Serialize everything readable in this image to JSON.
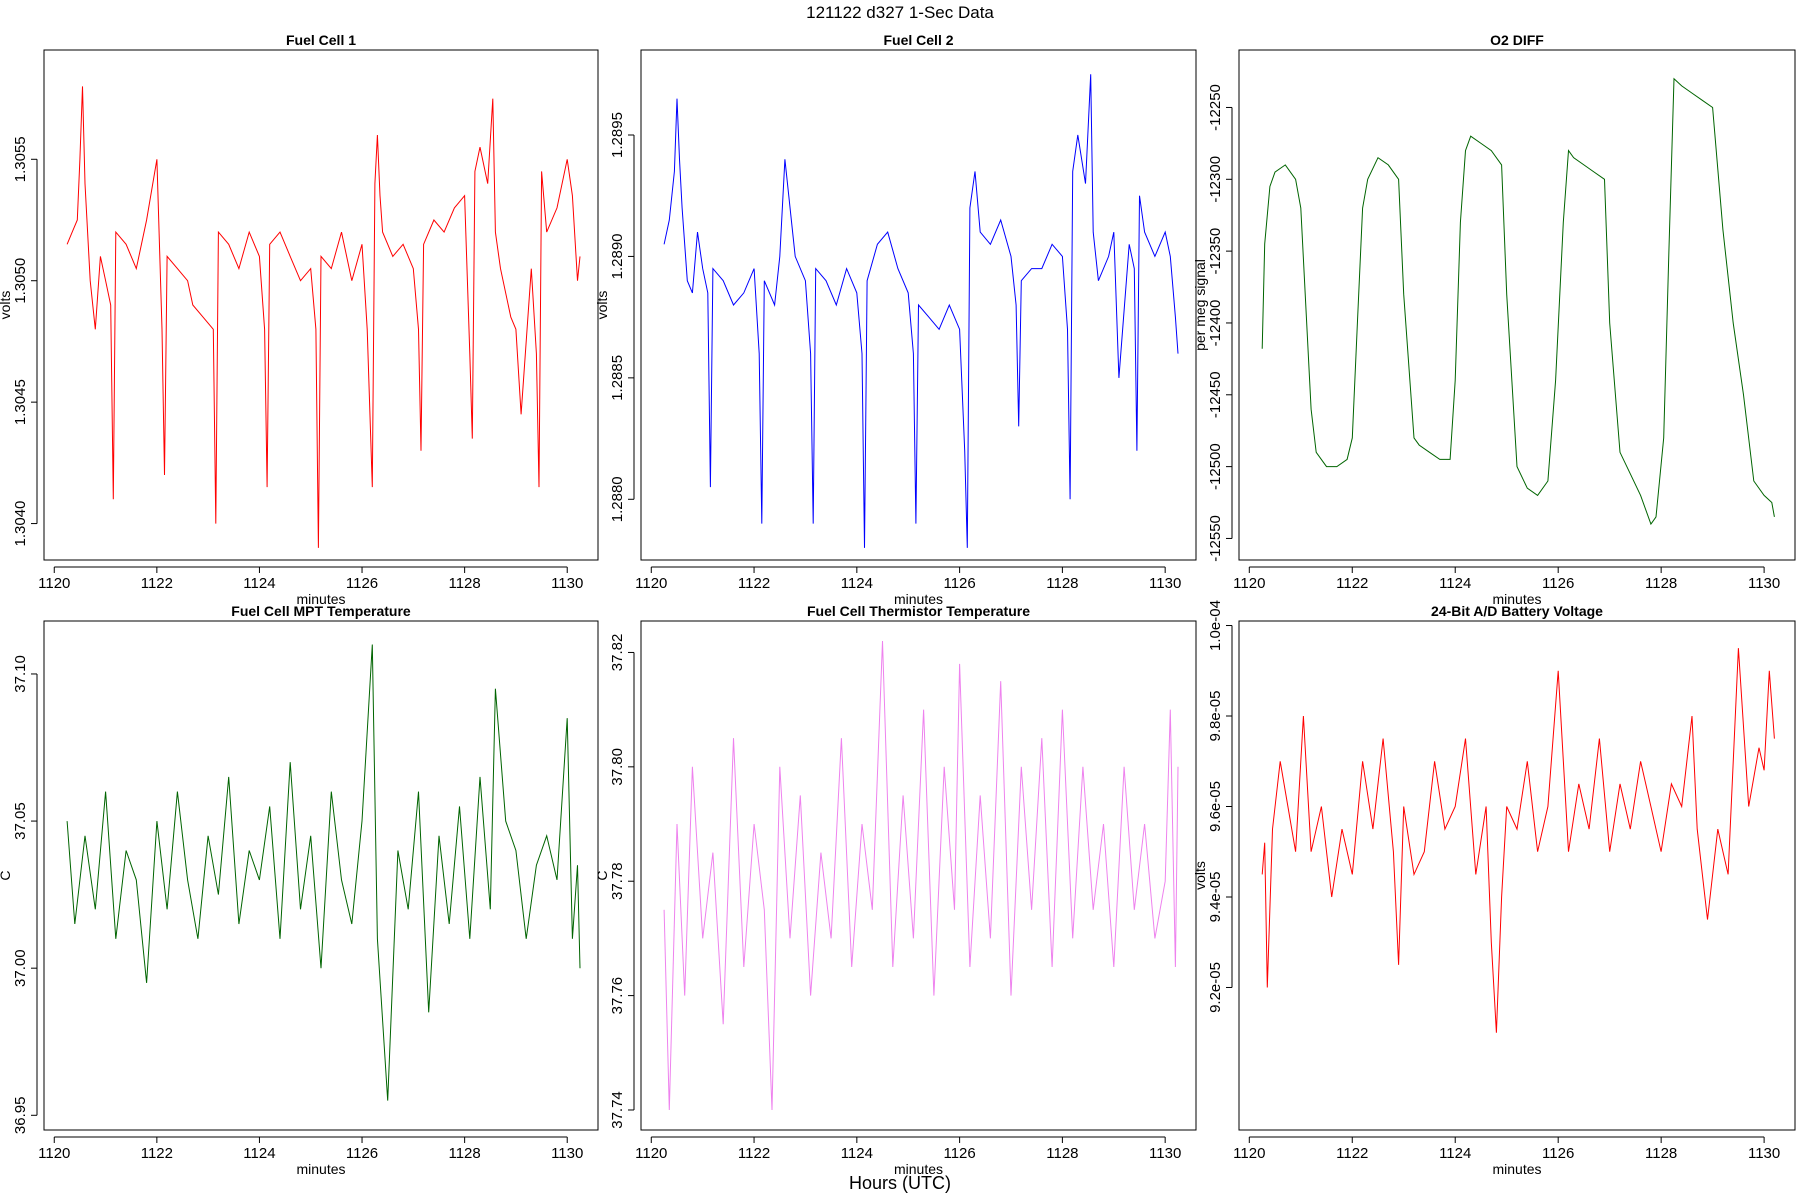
{
  "figure": {
    "title": "121122   d327   1-Sec Data",
    "xlabel": "Hours (UTC)"
  },
  "chart_data": [
    {
      "type": "line",
      "title": "Fuel Cell 1",
      "xlabel": "minutes",
      "ylabel": "volts",
      "color": "#ff0000",
      "xlim": [
        1119.8,
        1130.6
      ],
      "ylim": [
        1.30385,
        1.30595
      ],
      "xticks": [
        1120,
        1122,
        1124,
        1126,
        1128,
        1130
      ],
      "xtick_labels": [
        "1120",
        "1122",
        "1124",
        "1126",
        "1128",
        "1130"
      ],
      "yticks": [
        1.304,
        1.3045,
        1.305,
        1.3055
      ],
      "ytick_labels": [
        "1.3040",
        "1.3045",
        "1.3050",
        "1.3055"
      ],
      "x": [
        1120.25,
        1120.35,
        1120.45,
        1120.5,
        1120.55,
        1120.6,
        1120.7,
        1120.8,
        1120.9,
        1121.0,
        1121.1,
        1121.15,
        1121.2,
        1121.4,
        1121.6,
        1121.8,
        1122.0,
        1122.1,
        1122.15,
        1122.2,
        1122.4,
        1122.6,
        1122.7,
        1122.9,
        1123.1,
        1123.15,
        1123.2,
        1123.4,
        1123.6,
        1123.8,
        1124.0,
        1124.1,
        1124.15,
        1124.2,
        1124.4,
        1124.6,
        1124.8,
        1125.0,
        1125.1,
        1125.15,
        1125.2,
        1125.4,
        1125.6,
        1125.8,
        1126.0,
        1126.1,
        1126.2,
        1126.25,
        1126.3,
        1126.35,
        1126.4,
        1126.6,
        1126.8,
        1127.0,
        1127.1,
        1127.15,
        1127.2,
        1127.4,
        1127.6,
        1127.8,
        1128.0,
        1128.1,
        1128.15,
        1128.2,
        1128.3,
        1128.45,
        1128.55,
        1128.6,
        1128.7,
        1128.9,
        1129.0,
        1129.1,
        1129.3,
        1129.4,
        1129.45,
        1129.5,
        1129.6,
        1129.8,
        1130.0,
        1130.1,
        1130.2,
        1130.25
      ],
      "y": [
        1.30515,
        1.3052,
        1.30525,
        1.3055,
        1.3058,
        1.3054,
        1.305,
        1.3048,
        1.3051,
        1.305,
        1.3049,
        1.3041,
        1.3052,
        1.30515,
        1.30505,
        1.30525,
        1.3055,
        1.3048,
        1.3042,
        1.3051,
        1.30505,
        1.305,
        1.3049,
        1.30485,
        1.3048,
        1.304,
        1.3052,
        1.30515,
        1.30505,
        1.3052,
        1.3051,
        1.3048,
        1.30415,
        1.30515,
        1.3052,
        1.3051,
        1.305,
        1.30505,
        1.3048,
        1.3039,
        1.3051,
        1.30505,
        1.3052,
        1.305,
        1.30515,
        1.3048,
        1.30415,
        1.3054,
        1.3056,
        1.30535,
        1.3052,
        1.3051,
        1.30515,
        1.30505,
        1.3048,
        1.3043,
        1.30515,
        1.30525,
        1.3052,
        1.3053,
        1.30535,
        1.3047,
        1.30435,
        1.30545,
        1.30555,
        1.3054,
        1.30575,
        1.3052,
        1.30505,
        1.30485,
        1.3048,
        1.30445,
        1.30505,
        1.3047,
        1.30415,
        1.30545,
        1.3052,
        1.3053,
        1.3055,
        1.30535,
        1.305,
        1.3051
      ]
    },
    {
      "type": "line",
      "title": "Fuel Cell 2",
      "xlabel": "minutes",
      "ylabel": "volts",
      "color": "#0000ff",
      "xlim": [
        1119.8,
        1130.6
      ],
      "ylim": [
        1.28775,
        1.28985
      ],
      "xticks": [
        1120,
        1122,
        1124,
        1126,
        1128,
        1130
      ],
      "xtick_labels": [
        "1120",
        "1122",
        "1124",
        "1126",
        "1128",
        "1130"
      ],
      "yticks": [
        1.288,
        1.2885,
        1.289,
        1.2895
      ],
      "ytick_labels": [
        "1.2880",
        "1.2885",
        "1.2890",
        "1.2895"
      ],
      "x": [
        1120.25,
        1120.35,
        1120.45,
        1120.5,
        1120.55,
        1120.6,
        1120.7,
        1120.8,
        1120.9,
        1121.0,
        1121.1,
        1121.15,
        1121.2,
        1121.4,
        1121.6,
        1121.8,
        1122.0,
        1122.1,
        1122.15,
        1122.2,
        1122.4,
        1122.5,
        1122.6,
        1122.8,
        1123.0,
        1123.1,
        1123.15,
        1123.2,
        1123.4,
        1123.6,
        1123.8,
        1124.0,
        1124.1,
        1124.15,
        1124.2,
        1124.4,
        1124.6,
        1124.8,
        1125.0,
        1125.1,
        1125.15,
        1125.2,
        1125.4,
        1125.6,
        1125.8,
        1126.0,
        1126.1,
        1126.15,
        1126.2,
        1126.3,
        1126.4,
        1126.6,
        1126.8,
        1127.0,
        1127.1,
        1127.15,
        1127.2,
        1127.4,
        1127.6,
        1127.8,
        1128.0,
        1128.1,
        1128.15,
        1128.2,
        1128.3,
        1128.45,
        1128.55,
        1128.6,
        1128.7,
        1128.9,
        1129.0,
        1129.1,
        1129.3,
        1129.4,
        1129.45,
        1129.5,
        1129.6,
        1129.8,
        1130.0,
        1130.1,
        1130.2,
        1130.25
      ],
      "y": [
        1.28905,
        1.28915,
        1.28935,
        1.28965,
        1.2894,
        1.2892,
        1.2889,
        1.28885,
        1.2891,
        1.28895,
        1.28885,
        1.28805,
        1.28895,
        1.2889,
        1.2888,
        1.28885,
        1.28895,
        1.2886,
        1.2879,
        1.2889,
        1.2888,
        1.289,
        1.2894,
        1.289,
        1.2889,
        1.2886,
        1.2879,
        1.28895,
        1.2889,
        1.2888,
        1.28895,
        1.28885,
        1.2886,
        1.2878,
        1.2889,
        1.28905,
        1.2891,
        1.28895,
        1.28885,
        1.2886,
        1.2879,
        1.2888,
        1.28875,
        1.2887,
        1.2888,
        1.2887,
        1.2882,
        1.2878,
        1.2892,
        1.28935,
        1.2891,
        1.28905,
        1.28915,
        1.289,
        1.2888,
        1.2883,
        1.2889,
        1.28895,
        1.28895,
        1.28905,
        1.289,
        1.2887,
        1.288,
        1.28935,
        1.2895,
        1.2893,
        1.28975,
        1.2891,
        1.2889,
        1.289,
        1.2891,
        1.2885,
        1.28905,
        1.28895,
        1.2882,
        1.28925,
        1.2891,
        1.289,
        1.2891,
        1.289,
        1.28875,
        1.2886
      ]
    },
    {
      "type": "line",
      "title": "O2 DIFF",
      "xlabel": "minutes",
      "ylabel": "per meg signal",
      "color": "#006400",
      "xlim": [
        1119.8,
        1130.6
      ],
      "ylim": [
        -12565,
        -12210
      ],
      "xticks": [
        1120,
        1122,
        1124,
        1126,
        1128,
        1130
      ],
      "xtick_labels": [
        "1120",
        "1122",
        "1124",
        "1126",
        "1128",
        "1130"
      ],
      "yticks": [
        -12550,
        -12500,
        -12450,
        -12400,
        -12350,
        -12300,
        -12250
      ],
      "ytick_labels": [
        "-12550",
        "-12500",
        "-12450",
        "-12400",
        "-12350",
        "-12300",
        "-12250"
      ],
      "x": [
        1120.25,
        1120.3,
        1120.4,
        1120.5,
        1120.7,
        1120.9,
        1121.0,
        1121.2,
        1121.3,
        1121.5,
        1121.7,
        1121.9,
        1122.0,
        1122.1,
        1122.2,
        1122.3,
        1122.5,
        1122.7,
        1122.9,
        1123.0,
        1123.2,
        1123.3,
        1123.5,
        1123.7,
        1123.9,
        1124.0,
        1124.1,
        1124.2,
        1124.3,
        1124.5,
        1124.7,
        1124.9,
        1125.0,
        1125.2,
        1125.4,
        1125.6,
        1125.8,
        1125.95,
        1126.1,
        1126.2,
        1126.3,
        1126.5,
        1126.7,
        1126.9,
        1127.0,
        1127.2,
        1127.4,
        1127.6,
        1127.8,
        1127.9,
        1128.05,
        1128.15,
        1128.25,
        1128.4,
        1128.6,
        1128.8,
        1129.0,
        1129.2,
        1129.4,
        1129.6,
        1129.8,
        1130.0,
        1130.15,
        1130.2
      ],
      "y": [
        -12418,
        -12345,
        -12305,
        -12295,
        -12290,
        -12300,
        -12320,
        -12460,
        -12490,
        -12500,
        -12500,
        -12495,
        -12480,
        -12400,
        -12320,
        -12300,
        -12285,
        -12290,
        -12300,
        -12380,
        -12480,
        -12485,
        -12490,
        -12495,
        -12495,
        -12440,
        -12330,
        -12280,
        -12270,
        -12275,
        -12280,
        -12290,
        -12380,
        -12500,
        -12515,
        -12520,
        -12510,
        -12440,
        -12330,
        -12280,
        -12285,
        -12290,
        -12295,
        -12300,
        -12400,
        -12490,
        -12505,
        -12520,
        -12540,
        -12535,
        -12480,
        -12350,
        -12230,
        -12235,
        -12240,
        -12245,
        -12250,
        -12335,
        -12400,
        -12450,
        -12510,
        -12520,
        -12525,
        -12535
      ]
    },
    {
      "type": "line",
      "title": "Fuel Cell MPT Temperature",
      "xlabel": "minutes",
      "ylabel": "C",
      "color": "#006400",
      "xlim": [
        1119.8,
        1130.6
      ],
      "ylim": [
        36.945,
        37.118
      ],
      "xticks": [
        1120,
        1122,
        1124,
        1126,
        1128,
        1130
      ],
      "xtick_labels": [
        "1120",
        "1122",
        "1124",
        "1126",
        "1128",
        "1130"
      ],
      "yticks": [
        36.95,
        37.0,
        37.05,
        37.1
      ],
      "ytick_labels": [
        "36.95",
        "37.00",
        "37.05",
        "37.10"
      ],
      "x": [
        1120.25,
        1120.4,
        1120.6,
        1120.8,
        1121.0,
        1121.2,
        1121.4,
        1121.6,
        1121.8,
        1122.0,
        1122.2,
        1122.4,
        1122.6,
        1122.8,
        1123.0,
        1123.2,
        1123.4,
        1123.6,
        1123.8,
        1124.0,
        1124.2,
        1124.4,
        1124.6,
        1124.8,
        1125.0,
        1125.2,
        1125.4,
        1125.6,
        1125.8,
        1126.0,
        1126.2,
        1126.3,
        1126.5,
        1126.7,
        1126.9,
        1127.1,
        1127.3,
        1127.5,
        1127.7,
        1127.9,
        1128.1,
        1128.3,
        1128.5,
        1128.6,
        1128.8,
        1129.0,
        1129.2,
        1129.4,
        1129.6,
        1129.8,
        1130.0,
        1130.1,
        1130.2,
        1130.25
      ],
      "y": [
        37.05,
        37.015,
        37.045,
        37.02,
        37.06,
        37.01,
        37.04,
        37.03,
        36.995,
        37.05,
        37.02,
        37.06,
        37.03,
        37.01,
        37.045,
        37.025,
        37.065,
        37.015,
        37.04,
        37.03,
        37.055,
        37.01,
        37.07,
        37.02,
        37.045,
        37.0,
        37.06,
        37.03,
        37.015,
        37.05,
        37.11,
        37.01,
        36.955,
        37.04,
        37.02,
        37.06,
        36.985,
        37.045,
        37.015,
        37.055,
        37.01,
        37.065,
        37.02,
        37.095,
        37.05,
        37.04,
        37.01,
        37.035,
        37.045,
        37.03,
        37.085,
        37.01,
        37.035,
        37.0
      ]
    },
    {
      "type": "line",
      "title": "Fuel Cell Thermistor Temperature",
      "xlabel": "minutes",
      "ylabel": "C",
      "color": "#ee82ee",
      "xlim": [
        1119.8,
        1130.6
      ],
      "ylim": [
        37.7365,
        37.8255
      ],
      "xticks": [
        1120,
        1122,
        1124,
        1126,
        1128,
        1130
      ],
      "xtick_labels": [
        "1120",
        "1122",
        "1124",
        "1126",
        "1128",
        "1130"
      ],
      "yticks": [
        37.74,
        37.76,
        37.78,
        37.8,
        37.82
      ],
      "ytick_labels": [
        "37.74",
        "37.76",
        "37.78",
        "37.80",
        "37.82"
      ],
      "x": [
        1120.25,
        1120.35,
        1120.5,
        1120.65,
        1120.8,
        1121.0,
        1121.2,
        1121.4,
        1121.6,
        1121.8,
        1122.0,
        1122.2,
        1122.35,
        1122.5,
        1122.7,
        1122.9,
        1123.1,
        1123.3,
        1123.5,
        1123.7,
        1123.9,
        1124.1,
        1124.3,
        1124.5,
        1124.7,
        1124.9,
        1125.1,
        1125.3,
        1125.5,
        1125.7,
        1125.9,
        1126.0,
        1126.2,
        1126.4,
        1126.6,
        1126.8,
        1127.0,
        1127.2,
        1127.4,
        1127.6,
        1127.8,
        1128.0,
        1128.2,
        1128.4,
        1128.6,
        1128.8,
        1129.0,
        1129.2,
        1129.4,
        1129.6,
        1129.8,
        1130.0,
        1130.1,
        1130.2,
        1130.25
      ],
      "y": [
        37.775,
        37.74,
        37.79,
        37.76,
        37.8,
        37.77,
        37.785,
        37.755,
        37.805,
        37.765,
        37.79,
        37.775,
        37.74,
        37.8,
        37.77,
        37.795,
        37.76,
        37.785,
        37.77,
        37.805,
        37.765,
        37.79,
        37.775,
        37.822,
        37.765,
        37.795,
        37.77,
        37.81,
        37.76,
        37.8,
        37.775,
        37.818,
        37.765,
        37.795,
        37.77,
        37.815,
        37.76,
        37.8,
        37.775,
        37.805,
        37.765,
        37.81,
        37.77,
        37.8,
        37.775,
        37.79,
        37.765,
        37.8,
        37.775,
        37.79,
        37.77,
        37.78,
        37.81,
        37.765,
        37.8
      ]
    },
    {
      "type": "line",
      "title": "24-Bit A/D Battery Voltage",
      "xlabel": "minutes",
      "ylabel": "volts",
      "color": "#ff0000",
      "xlim": [
        1119.8,
        1130.6
      ],
      "ylim": [
        8.885e-05,
        0.0001001
      ],
      "xticks": [
        1120,
        1122,
        1124,
        1126,
        1128,
        1130
      ],
      "xtick_labels": [
        "1120",
        "1122",
        "1124",
        "1126",
        "1128",
        "1130"
      ],
      "yticks": [
        9.2e-05,
        9.4e-05,
        9.6e-05,
        9.8e-05,
        0.0001
      ],
      "ytick_labels": [
        "9.2e-05",
        "9.4e-05",
        "9.6e-05",
        "9.8e-05",
        "1.0e-04"
      ],
      "x": [
        1120.25,
        1120.3,
        1120.35,
        1120.45,
        1120.6,
        1120.75,
        1120.9,
        1121.05,
        1121.2,
        1121.4,
        1121.6,
        1121.8,
        1122.0,
        1122.2,
        1122.4,
        1122.6,
        1122.8,
        1122.9,
        1123.0,
        1123.2,
        1123.4,
        1123.6,
        1123.8,
        1124.0,
        1124.2,
        1124.4,
        1124.6,
        1124.7,
        1124.8,
        1124.9,
        1125.0,
        1125.2,
        1125.4,
        1125.6,
        1125.8,
        1126.0,
        1126.2,
        1126.4,
        1126.6,
        1126.8,
        1127.0,
        1127.2,
        1127.4,
        1127.6,
        1127.8,
        1128.0,
        1128.2,
        1128.4,
        1128.6,
        1128.7,
        1128.9,
        1129.1,
        1129.3,
        1129.5,
        1129.7,
        1129.9,
        1130.0,
        1130.1,
        1130.2
      ],
      "y": [
        9.45e-05,
        9.52e-05,
        9.2e-05,
        9.55e-05,
        9.7e-05,
        9.6e-05,
        9.5e-05,
        9.8e-05,
        9.5e-05,
        9.6e-05,
        9.4e-05,
        9.55e-05,
        9.45e-05,
        9.7e-05,
        9.55e-05,
        9.75e-05,
        9.5e-05,
        9.25e-05,
        9.6e-05,
        9.45e-05,
        9.5e-05,
        9.7e-05,
        9.55e-05,
        9.6e-05,
        9.75e-05,
        9.45e-05,
        9.6e-05,
        9.3e-05,
        9.1e-05,
        9.4e-05,
        9.6e-05,
        9.55e-05,
        9.7e-05,
        9.5e-05,
        9.6e-05,
        9.9e-05,
        9.5e-05,
        9.65e-05,
        9.55e-05,
        9.75e-05,
        9.5e-05,
        9.65e-05,
        9.55e-05,
        9.7e-05,
        9.6e-05,
        9.5e-05,
        9.65e-05,
        9.6e-05,
        9.8e-05,
        9.55e-05,
        9.35e-05,
        9.55e-05,
        9.45e-05,
        9.95e-05,
        9.6e-05,
        9.73e-05,
        9.68e-05,
        9.9e-05,
        9.75e-05
      ]
    }
  ]
}
